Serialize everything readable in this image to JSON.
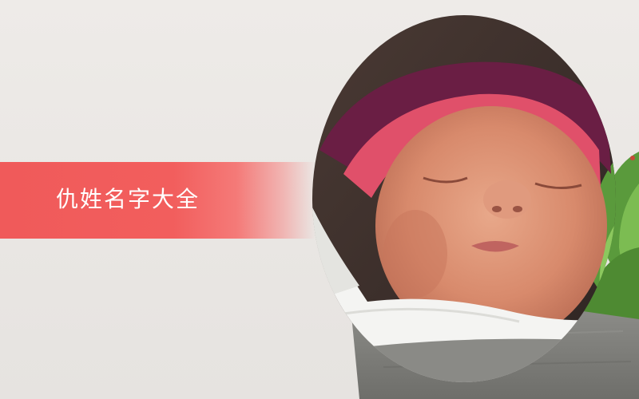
{
  "banner": {
    "title": "仇姓名字大全",
    "color": "#f05a5a"
  },
  "photo": {
    "icon": "sleeping-baby-photo"
  }
}
